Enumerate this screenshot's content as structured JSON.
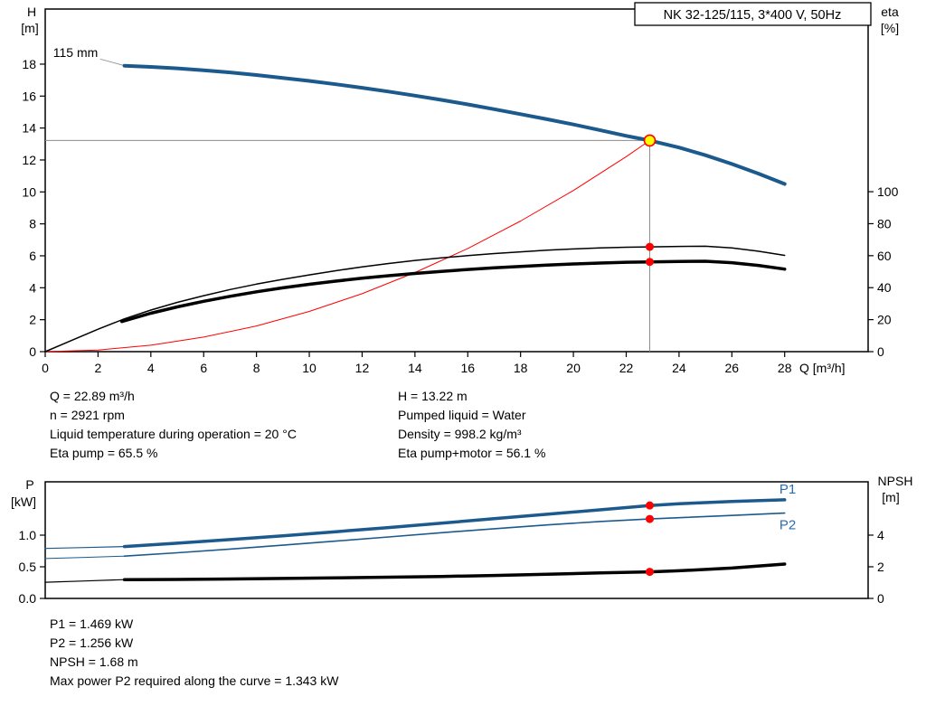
{
  "title_box": {
    "label": "NK 32-125/115, 3*400 V, 50Hz"
  },
  "colors": {
    "curve_blue": "#1c5a8d",
    "label_blue": "#2a6cb0",
    "red": "#ff0000",
    "yellow": "#ffff00",
    "duty_gray": "#8c8c8c",
    "leader_gray": "#9a9a9a",
    "black": "#000000"
  },
  "info_top": {
    "left": [
      "Q = 22.89 m³/h",
      "n = 2921 rpm",
      "Liquid temperature during operation = 20 °C",
      "Eta pump = 65.5 %"
    ],
    "right": [
      "H = 13.22 m",
      "Pumped liquid = Water",
      "Density = 998.2 kg/m³",
      "Eta pump+motor = 56.1 %"
    ]
  },
  "info_bottom": [
    "P1 = 1.469 kW",
    "P2 = 1.256 kW",
    "NPSH = 1.68 m",
    "Max power P2 required along the curve = 1.343 kW"
  ],
  "chart_data": [
    {
      "type": "line",
      "name": "head-efficiency-chart",
      "x_axis": {
        "label": "Q [m³/h]",
        "range": [
          0,
          31.16
        ],
        "ticks": [
          0,
          2,
          4,
          6,
          8,
          10,
          12,
          14,
          16,
          18,
          20,
          22,
          24,
          26,
          28
        ],
        "tick_labels": [
          "0",
          "2",
          "4",
          "6",
          "8",
          "10",
          "12",
          "14",
          "16",
          "18",
          "20",
          "22",
          "24",
          "26",
          "28"
        ]
      },
      "left_axis": {
        "label_lines": [
          "H",
          "[m]"
        ],
        "range": [
          0,
          21.45
        ],
        "ticks": [
          0,
          2,
          4,
          6,
          8,
          10,
          12,
          14,
          16,
          18
        ],
        "tick_labels": [
          "0",
          "2",
          "4",
          "6",
          "8",
          "10",
          "12",
          "14",
          "16",
          "18"
        ]
      },
      "right_axis": {
        "label_lines": [
          "eta",
          "[%]"
        ],
        "range": [
          0,
          214.2
        ],
        "ticks": [
          0,
          20,
          40,
          60,
          80,
          100
        ],
        "tick_labels": [
          "0",
          "20",
          "40",
          "60",
          "80",
          "100"
        ]
      },
      "lines": [
        {
          "name": "impeller-leader-line",
          "axis": "left",
          "color": "leader_gray",
          "width": 1,
          "from": [
            2.08,
            18.32
          ],
          "to": [
            2.97,
            17.92
          ]
        },
        {
          "name": "duty-line-vertical",
          "axis": "left",
          "color": "duty_gray",
          "width": 1,
          "from": [
            22.89,
            0
          ],
          "to": [
            22.89,
            13.22
          ]
        },
        {
          "name": "duty-line-horizontal",
          "axis": "left",
          "color": "duty_gray",
          "width": 1,
          "from": [
            0,
            13.22
          ],
          "to": [
            22.89,
            13.22
          ]
        }
      ],
      "series": [
        {
          "name": "system-curve",
          "axis": "left",
          "color": "red",
          "width": 1,
          "points": [
            [
              0,
              0
            ],
            [
              2,
              0.1
            ],
            [
              4,
              0.4
            ],
            [
              6,
              0.91
            ],
            [
              8,
              1.61
            ],
            [
              10,
              2.52
            ],
            [
              12,
              3.63
            ],
            [
              14,
              4.95
            ],
            [
              16,
              6.46
            ],
            [
              18,
              8.18
            ],
            [
              20,
              10.09
            ],
            [
              22,
              12.21
            ],
            [
              22.89,
              13.22
            ]
          ]
        },
        {
          "name": "eta-pump-curve",
          "axis": "right",
          "color": "black",
          "width": 1.5,
          "points": [
            [
              0,
              0
            ],
            [
              1,
              7
            ],
            [
              2,
              14
            ],
            [
              3,
              20.5
            ],
            [
              4,
              26
            ],
            [
              5,
              30.8
            ],
            [
              6,
              35
            ],
            [
              7,
              38.8
            ],
            [
              8,
              42.2
            ],
            [
              9,
              45.2
            ],
            [
              10,
              48
            ],
            [
              11,
              50.6
            ],
            [
              12,
              53
            ],
            [
              13,
              55.1
            ],
            [
              14,
              57
            ],
            [
              15,
              58.6
            ],
            [
              16,
              60
            ],
            [
              17,
              61.3
            ],
            [
              18,
              62.4
            ],
            [
              19,
              63.4
            ],
            [
              20,
              64.2
            ],
            [
              21,
              64.9
            ],
            [
              22,
              65.3
            ],
            [
              22.89,
              65.5
            ],
            [
              24,
              65.8
            ],
            [
              25,
              65.9
            ],
            [
              26,
              64.9
            ],
            [
              27,
              62.8
            ],
            [
              28,
              60.2
            ]
          ]
        },
        {
          "name": "eta-pump-motor-curve",
          "axis": "right",
          "color": "black",
          "width": 3.5,
          "points": [
            [
              2.9,
              18.8
            ],
            [
              4,
              24
            ],
            [
              5,
              28
            ],
            [
              6,
              31.5
            ],
            [
              7,
              34.6
            ],
            [
              8,
              37.4
            ],
            [
              9,
              39.9
            ],
            [
              10,
              42.1
            ],
            [
              11,
              44.1
            ],
            [
              12,
              45.9
            ],
            [
              13,
              47.5
            ],
            [
              14,
              48.9
            ],
            [
              15,
              50.2
            ],
            [
              16,
              51.4
            ],
            [
              17,
              52.4
            ],
            [
              18,
              53.3
            ],
            [
              19,
              54.1
            ],
            [
              20,
              54.8
            ],
            [
              21,
              55.4
            ],
            [
              22,
              55.9
            ],
            [
              22.89,
              56.1
            ],
            [
              24,
              56.4
            ],
            [
              25,
              56.5
            ],
            [
              26,
              55.6
            ],
            [
              27,
              53.9
            ],
            [
              28,
              51.6
            ]
          ]
        },
        {
          "name": "h-q-curve-115mm",
          "axis": "left",
          "color": "curve_blue",
          "width": 4,
          "points": [
            [
              3,
              17.9
            ],
            [
              4,
              17.83
            ],
            [
              5,
              17.74
            ],
            [
              6,
              17.62
            ],
            [
              7,
              17.48
            ],
            [
              8,
              17.32
            ],
            [
              9,
              17.14
            ],
            [
              10,
              16.95
            ],
            [
              11,
              16.74
            ],
            [
              12,
              16.52
            ],
            [
              13,
              16.28
            ],
            [
              14,
              16.03
            ],
            [
              15,
              15.76
            ],
            [
              16,
              15.48
            ],
            [
              17,
              15.18
            ],
            [
              18,
              14.87
            ],
            [
              19,
              14.55
            ],
            [
              20,
              14.22
            ],
            [
              21,
              13.87
            ],
            [
              22,
              13.51
            ],
            [
              22.89,
              13.22
            ],
            [
              24,
              12.78
            ],
            [
              25,
              12.3
            ],
            [
              26,
              11.75
            ],
            [
              27,
              11.15
            ],
            [
              28,
              10.5
            ]
          ]
        }
      ],
      "annotations": [
        {
          "name": "impeller-diameter-label",
          "text": "115 mm",
          "x": 0.3,
          "y": 18.45,
          "axis": "left",
          "anchor": "start",
          "color": "black",
          "size": 14
        }
      ],
      "markers": [
        {
          "name": "eta-pump-duty-dot",
          "x": 22.89,
          "y": 65.5,
          "axis": "right",
          "r": 4.5,
          "fill": "red"
        },
        {
          "name": "eta-pump-motor-duty-dot",
          "x": 22.89,
          "y": 56.1,
          "axis": "right",
          "r": 4.5,
          "fill": "red"
        },
        {
          "name": "duty-point-marker",
          "x": 22.89,
          "y": 13.22,
          "axis": "left",
          "r": 6,
          "fill": "yellow",
          "stroke": "red"
        }
      ],
      "duty_point": {
        "Q_m3h": 22.89,
        "H_m": 13.22,
        "eta_pump_pct": 65.5,
        "eta_pump_motor_pct": 56.1
      }
    },
    {
      "type": "line",
      "name": "power-npsh-chart",
      "x_axis": {
        "label": "",
        "range": [
          0,
          31.16
        ],
        "ticks": [],
        "tick_labels": []
      },
      "left_axis": {
        "label_lines": [
          "P",
          "[kW]"
        ],
        "range": [
          0,
          1.843
        ],
        "ticks": [
          0,
          0.5,
          1.0
        ],
        "tick_labels": [
          "0.0",
          "0.5",
          "1.0"
        ]
      },
      "right_axis": {
        "label_lines": [
          "NPSH",
          "[m]"
        ],
        "range": [
          0,
          7.37
        ],
        "ticks": [
          0,
          2,
          4
        ],
        "tick_labels": [
          "0",
          "2",
          "4"
        ]
      },
      "lines": [],
      "series": [
        {
          "name": "p1-curve-extension",
          "axis": "left",
          "color": "curve_blue",
          "width": 1.2,
          "points": [
            [
              0,
              0.79
            ],
            [
              1.5,
              0.805
            ],
            [
              3,
              0.82
            ]
          ]
        },
        {
          "name": "p2-curve-extension",
          "axis": "left",
          "color": "curve_blue",
          "width": 1,
          "points": [
            [
              0,
              0.63
            ],
            [
              1.5,
              0.648
            ],
            [
              3,
              0.668
            ]
          ]
        },
        {
          "name": "npsh-curve-extension",
          "axis": "right",
          "color": "black",
          "width": 1.2,
          "points": [
            [
              0,
              1.02
            ],
            [
              1.5,
              1.1
            ],
            [
              3,
              1.19
            ]
          ]
        },
        {
          "name": "p2-curve",
          "axis": "left",
          "color": "curve_blue",
          "width": 1.6,
          "points": [
            [
              3,
              0.668
            ],
            [
              5,
              0.722
            ],
            [
              7,
              0.78
            ],
            [
              9,
              0.842
            ],
            [
              11,
              0.906
            ],
            [
              13,
              0.972
            ],
            [
              15,
              1.038
            ],
            [
              17,
              1.102
            ],
            [
              19,
              1.162
            ],
            [
              21,
              1.216
            ],
            [
              22.89,
              1.256
            ],
            [
              24,
              1.276
            ],
            [
              26,
              1.312
            ],
            [
              28,
              1.348
            ]
          ]
        },
        {
          "name": "p1-curve",
          "axis": "left",
          "color": "curve_blue",
          "width": 3.5,
          "points": [
            [
              3,
              0.82
            ],
            [
              5,
              0.873
            ],
            [
              7,
              0.93
            ],
            [
              9,
              0.99
            ],
            [
              11,
              1.055
            ],
            [
              13,
              1.12
            ],
            [
              15,
              1.19
            ],
            [
              17,
              1.26
            ],
            [
              19,
              1.33
            ],
            [
              21,
              1.4
            ],
            [
              22.89,
              1.469
            ],
            [
              24,
              1.497
            ],
            [
              26,
              1.532
            ],
            [
              28,
              1.558
            ]
          ]
        },
        {
          "name": "npsh-curve",
          "axis": "right",
          "color": "black",
          "width": 3.5,
          "points": [
            [
              3,
              1.19
            ],
            [
              5,
              1.2
            ],
            [
              7,
              1.23
            ],
            [
              9,
              1.26
            ],
            [
              11,
              1.3
            ],
            [
              13,
              1.34
            ],
            [
              15,
              1.39
            ],
            [
              17,
              1.45
            ],
            [
              19,
              1.53
            ],
            [
              21,
              1.61
            ],
            [
              22.89,
              1.68
            ],
            [
              24,
              1.75
            ],
            [
              26,
              1.92
            ],
            [
              28,
              2.17
            ]
          ]
        }
      ],
      "annotations": [
        {
          "name": "p1-curve-label",
          "text": "P1",
          "x": 27.8,
          "y": 1.655,
          "axis": "left",
          "anchor": "start",
          "color": "label_blue",
          "size": 15
        },
        {
          "name": "p2-curve-label",
          "text": "P2",
          "x": 27.8,
          "y": 1.095,
          "axis": "left",
          "anchor": "start",
          "color": "label_blue",
          "size": 15
        }
      ],
      "markers": [
        {
          "name": "p1-duty-dot",
          "x": 22.89,
          "y": 1.469,
          "axis": "left",
          "r": 4.5,
          "fill": "red"
        },
        {
          "name": "p2-duty-dot",
          "x": 22.89,
          "y": 1.256,
          "axis": "left",
          "r": 4.5,
          "fill": "red"
        },
        {
          "name": "npsh-duty-dot",
          "x": 22.89,
          "y": 1.68,
          "axis": "right",
          "r": 4.5,
          "fill": "red"
        }
      ],
      "duty_point": {
        "Q_m3h": 22.89,
        "P1_kW": 1.469,
        "P2_kW": 1.256,
        "NPSH_m": 1.68
      }
    }
  ]
}
